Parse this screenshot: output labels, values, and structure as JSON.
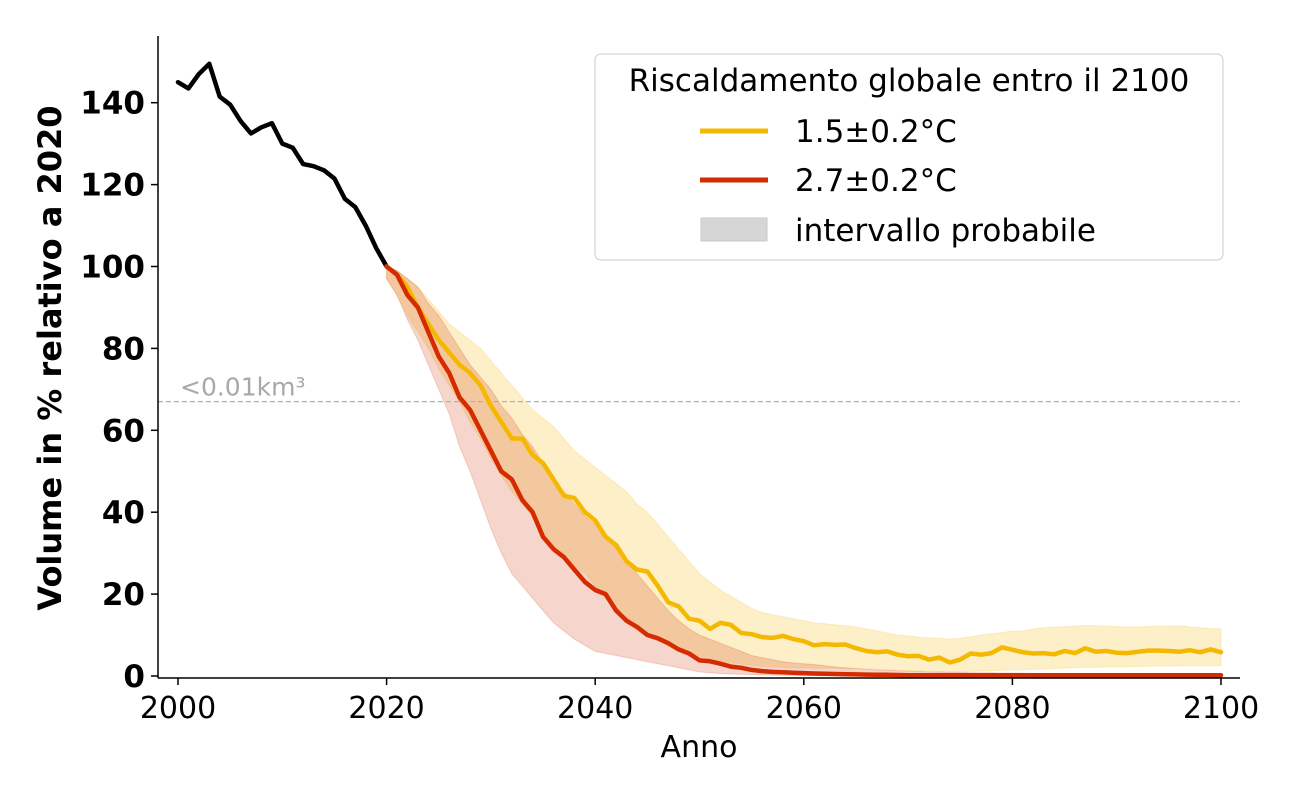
{
  "chart_data": {
    "type": "line",
    "xlabel": "Anno",
    "ylabel": "Volume in % relativo a 2020",
    "xlim": [
      2000,
      2100
    ],
    "ylim": [
      0,
      155
    ],
    "x_ticks": [
      2000,
      2020,
      2040,
      2060,
      2080,
      2100
    ],
    "y_ticks": [
      0,
      20,
      40,
      60,
      80,
      100,
      120,
      140
    ],
    "grid": false,
    "threshold": {
      "y": 67,
      "label": "<0.01km³",
      "color": "#b0b0b0"
    },
    "legend": {
      "title": "Riscaldamento globale entro il 2100",
      "placement": "top-right",
      "band_label": "intervallo probabile",
      "band_color": "#d6d6d6"
    },
    "historical": {
      "color": "#000000",
      "x": [
        2000,
        2001,
        2002,
        2003,
        2004,
        2005,
        2006,
        2007,
        2008,
        2009,
        2010,
        2011,
        2012,
        2013,
        2014,
        2015,
        2016,
        2017,
        2018,
        2019,
        2020
      ],
      "values": [
        145,
        143.5,
        147,
        149.5,
        141.5,
        139.5,
        135.5,
        132.5,
        134,
        135,
        130,
        129,
        125,
        124.5,
        123.5,
        121.5,
        116.5,
        114.5,
        110,
        104.5,
        100
      ]
    },
    "series": [
      {
        "name": "1.5±0.2°C",
        "color": "#f5b800",
        "band_color": "#f5b800",
        "band_opacity": 0.22,
        "x": [
          2020,
          2021,
          2022,
          2023,
          2024,
          2025,
          2026,
          2027,
          2028,
          2029,
          2030,
          2031,
          2032,
          2033,
          2034,
          2035,
          2036,
          2037,
          2038,
          2039,
          2040,
          2041,
          2042,
          2043,
          2044,
          2045,
          2046,
          2047,
          2048,
          2049,
          2050,
          2051,
          2052,
          2053,
          2054,
          2055,
          2056,
          2057,
          2058,
          2059,
          2060,
          2061,
          2062,
          2063,
          2064,
          2065,
          2066,
          2067,
          2068,
          2069,
          2070,
          2071,
          2072,
          2073,
          2074,
          2075,
          2076,
          2077,
          2078,
          2079,
          2080,
          2081,
          2082,
          2083,
          2084,
          2085,
          2086,
          2087,
          2088,
          2089,
          2090,
          2091,
          2092,
          2093,
          2094,
          2095,
          2096,
          2097,
          2098,
          2099,
          2100
        ],
        "values": [
          100,
          98,
          95,
          90,
          86,
          82,
          79,
          76,
          74,
          71,
          66,
          62,
          58,
          58,
          54,
          52,
          48,
          44,
          43.5,
          40,
          38,
          34,
          32,
          28,
          26,
          25.5,
          22,
          18,
          17,
          14,
          13.5,
          11.5,
          13,
          12.5,
          10.5,
          10.2,
          9.5,
          9.3,
          9.8,
          9,
          8.5,
          7.5,
          7.8,
          7.6,
          7.7,
          6.8,
          6.1,
          5.8,
          6,
          5.2,
          4.8,
          4.9,
          4,
          4.5,
          3.3,
          4,
          5.5,
          5.2,
          5.6,
          7,
          6.4,
          5.8,
          5.5,
          5.6,
          5.3,
          6.1,
          5.6,
          6.8,
          5.9,
          6.1,
          5.7,
          5.6,
          5.9,
          6.2,
          6.2,
          6.1,
          5.9,
          6.3,
          5.8,
          6.5,
          5.8
        ],
        "lower": [
          97,
          93,
          88,
          84,
          80,
          75,
          71,
          67,
          62,
          58,
          53,
          49,
          45,
          42,
          39,
          35,
          32,
          29,
          27,
          25,
          22,
          19,
          16,
          14,
          12,
          10.5,
          9,
          7.6,
          6.4,
          5.5,
          4.8,
          4.2,
          3.7,
          3.3,
          2.9,
          2.6,
          2.4,
          2.2,
          2.1,
          2,
          2,
          1.9,
          1.9,
          1.9,
          1.8,
          1.8,
          1.7,
          1.6,
          1.5,
          1.4,
          1.3,
          1.2,
          1.2,
          1.1,
          1,
          1,
          1.1,
          1.2,
          1.3,
          1.4,
          1.5,
          1.5,
          1.6,
          1.7,
          1.8,
          1.9,
          2,
          2.1,
          2.1,
          2.2,
          2.2,
          2.3,
          2.3,
          2.4,
          2.4,
          2.4,
          2.5,
          2.5,
          2.5,
          2.5,
          2.5
        ],
        "upper": [
          100,
          99,
          97,
          95,
          92,
          89,
          86,
          84,
          82,
          80,
          77,
          74,
          71,
          68,
          65,
          63,
          61,
          58,
          55,
          53,
          51,
          49,
          47,
          45,
          42,
          40,
          37,
          34,
          31,
          28,
          25,
          23,
          21,
          19.5,
          18,
          16.5,
          15.5,
          15,
          14.5,
          14,
          13.5,
          13,
          12.8,
          12.5,
          12.3,
          12,
          11.5,
          11,
          10.5,
          10,
          9.8,
          9.5,
          9.3,
          9.2,
          9,
          9.2,
          9.6,
          10,
          10.3,
          10.6,
          11,
          11,
          11.5,
          11.8,
          12,
          12,
          12.2,
          12.4,
          12.3,
          12.2,
          12.1,
          12,
          12,
          12.1,
          12.2,
          12.2,
          12.3,
          12,
          11.8,
          11.6,
          11.5
        ]
      },
      {
        "name": "2.7±0.2°C",
        "color": "#d42b00",
        "band_color": "#d42b00",
        "band_opacity": 0.2,
        "x": [
          2020,
          2021,
          2022,
          2023,
          2024,
          2025,
          2026,
          2027,
          2028,
          2029,
          2030,
          2031,
          2032,
          2033,
          2034,
          2035,
          2036,
          2037,
          2038,
          2039,
          2040,
          2041,
          2042,
          2043,
          2044,
          2045,
          2046,
          2047,
          2048,
          2049,
          2050,
          2051,
          2052,
          2053,
          2054,
          2055,
          2056,
          2057,
          2058,
          2059,
          2060,
          2061,
          2062,
          2063,
          2064,
          2065,
          2066,
          2067,
          2068,
          2069,
          2070,
          2071,
          2072,
          2073,
          2074,
          2075,
          2076,
          2077,
          2078,
          2079,
          2080,
          2081,
          2082,
          2083,
          2084,
          2085,
          2086,
          2087,
          2088,
          2089,
          2090,
          2091,
          2092,
          2093,
          2094,
          2095,
          2096,
          2097,
          2098,
          2099,
          2100
        ],
        "values": [
          100,
          98,
          93,
          90,
          84,
          78,
          74,
          68,
          65,
          60,
          55,
          50,
          48,
          43,
          40,
          34,
          31,
          29,
          26,
          23,
          21,
          20,
          16,
          13.5,
          12,
          10,
          9.2,
          8,
          6.5,
          5.5,
          3.8,
          3.6,
          3,
          2.3,
          2,
          1.5,
          1.2,
          1,
          0.9,
          0.8,
          0.7,
          0.6,
          0.55,
          0.5,
          0.45,
          0.4,
          0.35,
          0.3,
          0.3,
          0.25,
          0.2,
          0.2,
          0.2,
          0.2,
          0.2,
          0.2,
          0.2,
          0.2,
          0.2,
          0.2,
          0.2,
          0.2,
          0.2,
          0.2,
          0.2,
          0.2,
          0.2,
          0.2,
          0.2,
          0.2,
          0.2,
          0.2,
          0.2,
          0.2,
          0.2,
          0.2,
          0.2,
          0.2,
          0.2,
          0.2,
          0.2
        ],
        "lower": [
          97,
          93,
          87,
          82,
          76,
          70,
          64,
          56,
          50,
          43,
          36,
          30,
          25,
          22,
          19,
          16,
          13,
          11,
          9,
          7.5,
          6,
          5.5,
          5,
          4.5,
          4,
          3.5,
          3,
          2.5,
          2,
          1.5,
          1,
          0.8,
          0.6,
          0.5,
          0.4,
          0.3,
          0.3,
          0.2,
          0.2,
          0.2,
          0.1,
          0.1,
          0.1,
          0.1,
          0.1,
          0.1,
          0.1,
          0.1,
          0.1,
          0.1,
          0.1,
          0.1,
          0.1,
          0.1,
          0.1,
          0.1,
          0.1,
          0.1,
          0.1,
          0.1,
          0.1,
          0.1,
          0.1,
          0.1,
          0.1,
          0.1,
          0.1,
          0.1,
          0.1,
          0.1,
          0.1,
          0.1,
          0.1,
          0.1,
          0.1,
          0.1,
          0.1,
          0.1,
          0.1,
          0.1,
          0.1
        ],
        "upper": [
          100,
          99,
          97,
          95,
          91,
          88,
          84,
          80,
          76,
          73,
          70,
          66,
          63,
          59,
          56,
          52,
          48,
          45,
          42,
          39,
          37,
          34,
          31,
          28,
          25,
          22,
          19,
          16,
          13.5,
          11.5,
          10,
          9,
          8,
          7,
          6,
          5,
          4.5,
          4,
          3.5,
          3.2,
          3,
          2.8,
          2.5,
          2.2,
          2,
          1.8,
          1.6,
          1.5,
          1.4,
          1.3,
          1.2,
          1.1,
          1,
          1,
          0.9,
          0.9,
          0.8,
          0.8,
          0.8,
          0.7,
          0.7,
          0.7,
          0.6,
          0.6,
          0.6,
          0.6,
          0.5,
          0.5,
          0.5,
          0.5,
          0.5,
          0.5,
          0.5,
          0.5,
          0.5,
          0.5,
          0.5,
          0.5,
          0.5,
          0.5,
          0.5
        ]
      }
    ]
  }
}
